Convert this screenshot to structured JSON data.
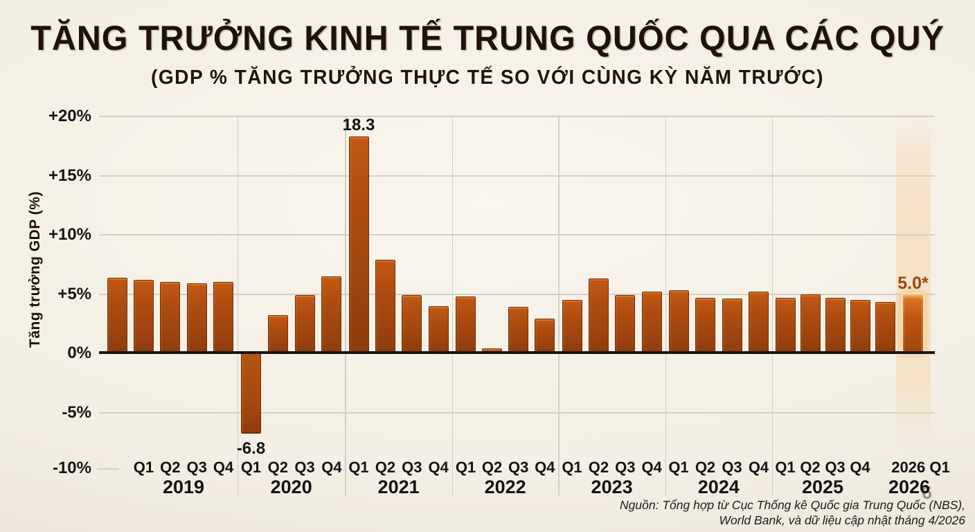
{
  "header": {
    "title": "TĂNG TRƯỞNG KINH TẾ TRUNG QUỐC QUA CÁC QUÝ",
    "subtitle": "(GDP % TĂNG TRƯỞNG THỰC TẾ SO VỚI CÙNG KỲ NĂM TRƯỚC)"
  },
  "source": {
    "line1": "Nguồn: Tổng hợp từ Cục Thống kê Quốc gia Trung Quốc (NBS),",
    "line2": "World Bank, và dữ liệu cập nhật tháng 4/2026"
  },
  "artifacts": {
    "ghost_six": "6"
  },
  "colors": {
    "background": "#f3eee2",
    "bar_top": "#c25813",
    "bar_bottom": "#8d3b0c",
    "bar_border": "#6f2e09",
    "highlight_outline": "#f8ddae",
    "highlight_band": "#f5e3c9",
    "annotation_highlight": "#9d470d",
    "axis": "#161616",
    "gridline": "#d2cfc4",
    "text": "#20120a"
  },
  "chart_data": {
    "type": "bar",
    "title": "TĂNG TRƯỞNG KINH TẾ TRUNG QUỐC QUA CÁC QUÝ",
    "subtitle": "(GDP % TĂNG TRƯỞNG THỰC TẾ SO VỚI CÙNG KỲ NĂM TRƯỚC)",
    "ylabel": "Tăng trưởng GDP (%)",
    "xlabel": "",
    "unit": "percent, year-over-year real GDP growth",
    "ylim": [
      -10,
      20.5
    ],
    "grid": "horizontal",
    "legend": "none",
    "yticks": [
      {
        "value": 20,
        "label": "+20%"
      },
      {
        "value": 15,
        "label": "+15%"
      },
      {
        "value": 10,
        "label": "+10%"
      },
      {
        "value": 5,
        "label": "+5%"
      },
      {
        "value": 0,
        "label": "0%"
      },
      {
        "value": -5,
        "label": "-5%"
      },
      {
        "value": -10,
        "label": "-10%"
      }
    ],
    "groups": [
      {
        "year": "2019",
        "bars": [
          {
            "quarter": "",
            "value": 6.4
          },
          {
            "quarter": "Q1",
            "value": 6.2
          },
          {
            "quarter": "Q2",
            "value": 6.0
          },
          {
            "quarter": "Q3",
            "value": 5.9
          },
          {
            "quarter": "Q4",
            "value": 6.0
          }
        ]
      },
      {
        "year": "2020",
        "bars": [
          {
            "quarter": "Q1",
            "value": -6.8,
            "annotation": "-6.8"
          },
          {
            "quarter": "Q2",
            "value": 3.2
          },
          {
            "quarter": "Q3",
            "value": 4.9
          },
          {
            "quarter": "Q4",
            "value": 6.5
          }
        ]
      },
      {
        "year": "2021",
        "bars": [
          {
            "quarter": "Q1",
            "value": 18.3,
            "annotation": "18.3"
          },
          {
            "quarter": "Q2",
            "value": 7.9
          },
          {
            "quarter": "Q3",
            "value": 4.9
          },
          {
            "quarter": "Q4",
            "value": 4.0
          }
        ]
      },
      {
        "year": "2022",
        "bars": [
          {
            "quarter": "Q1",
            "value": 4.8
          },
          {
            "quarter": "Q2",
            "value": 0.4
          },
          {
            "quarter": "Q3",
            "value": 3.9
          },
          {
            "quarter": "Q4",
            "value": 2.9
          }
        ]
      },
      {
        "year": "2023",
        "bars": [
          {
            "quarter": "Q1",
            "value": 4.5
          },
          {
            "quarter": "Q2",
            "value": 6.3
          },
          {
            "quarter": "Q3",
            "value": 4.9
          },
          {
            "quarter": "Q4",
            "value": 5.2
          }
        ]
      },
      {
        "year": "2024",
        "bars": [
          {
            "quarter": "Q1",
            "value": 5.3
          },
          {
            "quarter": "Q2",
            "value": 4.7
          },
          {
            "quarter": "Q3",
            "value": 4.6
          },
          {
            "quarter": "Q4",
            "value": 5.2
          }
        ]
      },
      {
        "year": "2025",
        "bars": [
          {
            "quarter": "Q1",
            "value": 4.7
          },
          {
            "quarter": "Q2",
            "value": 5.0
          },
          {
            "quarter": "Q3",
            "value": 4.7
          },
          {
            "quarter": "Q4",
            "value": 4.5
          },
          {
            "quarter": "",
            "value": 4.3
          }
        ]
      },
      {
        "year": "2026",
        "bars": [
          {
            "quarter": "2026 Q1",
            "value": 5.0,
            "annotation": "5.0*",
            "highlighted": true
          }
        ]
      }
    ]
  }
}
